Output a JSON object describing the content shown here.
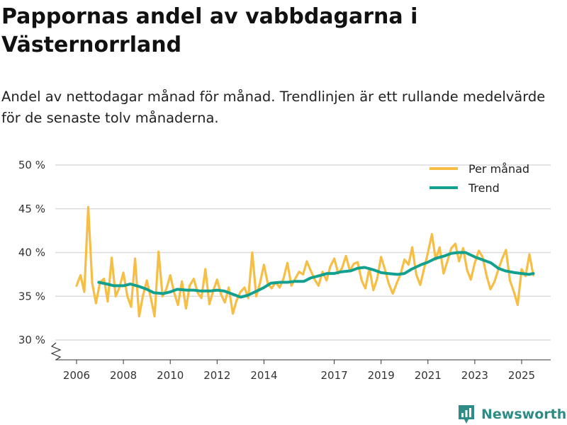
{
  "title": "Pappornas andel av vabbdagarna i Västernorrland",
  "subtitle": "Andel av nettodagar månad för månad. Trendlinjen är ett rullande medelvärde för de senaste tolv månaderna.",
  "brand": "Newsworthy",
  "colors": {
    "monthly": "#f6be44",
    "trend": "#12a08f",
    "grid": "#dcdcdc",
    "axis": "#333333",
    "brand": "#2e8c86"
  },
  "chart_data": {
    "type": "line",
    "title": "Pappornas andel av vabbdagarna i Västernorrland",
    "xlabel": "",
    "ylabel": "",
    "xlim": [
      2005.8,
      2025.6
    ],
    "ylim": [
      28,
      50
    ],
    "y_ticks": [
      30,
      35,
      40,
      45,
      50
    ],
    "y_tick_labels": [
      "30 %",
      "35 %",
      "40 %",
      "45 %",
      "50 %"
    ],
    "x_ticks": [
      2006,
      2008,
      2010,
      2012,
      2014,
      2017,
      2019,
      2021,
      2023,
      2025
    ],
    "x_tick_labels": [
      "2006",
      "2008",
      "2010",
      "2012",
      "2014",
      "2017",
      "2019",
      "2021",
      "2023",
      "2025"
    ],
    "legend": {
      "position": "top-right",
      "entries": [
        "Per månad",
        "Trend"
      ]
    },
    "series": [
      {
        "name": "Per månad",
        "color": "#f6be44",
        "points": [
          [
            2006.0,
            36.2
          ],
          [
            2006.17,
            37.4
          ],
          [
            2006.33,
            35.5
          ],
          [
            2006.5,
            45.2
          ],
          [
            2006.67,
            36.5
          ],
          [
            2006.83,
            34.2
          ],
          [
            2007.0,
            36.6
          ],
          [
            2007.17,
            37.0
          ],
          [
            2007.33,
            34.4
          ],
          [
            2007.5,
            39.4
          ],
          [
            2007.67,
            35.0
          ],
          [
            2007.83,
            36.0
          ],
          [
            2008.0,
            37.7
          ],
          [
            2008.17,
            35.0
          ],
          [
            2008.33,
            33.8
          ],
          [
            2008.5,
            39.3
          ],
          [
            2008.67,
            32.7
          ],
          [
            2008.83,
            35.0
          ],
          [
            2009.0,
            36.8
          ],
          [
            2009.17,
            34.8
          ],
          [
            2009.33,
            32.7
          ],
          [
            2009.5,
            40.1
          ],
          [
            2009.67,
            35.0
          ],
          [
            2009.83,
            35.8
          ],
          [
            2010.0,
            37.4
          ],
          [
            2010.17,
            35.4
          ],
          [
            2010.33,
            34.0
          ],
          [
            2010.5,
            36.7
          ],
          [
            2010.67,
            33.6
          ],
          [
            2010.83,
            36.2
          ],
          [
            2011.0,
            37.0
          ],
          [
            2011.17,
            35.4
          ],
          [
            2011.33,
            34.8
          ],
          [
            2011.5,
            38.1
          ],
          [
            2011.67,
            34.1
          ],
          [
            2011.83,
            35.6
          ],
          [
            2012.0,
            36.9
          ],
          [
            2012.17,
            35.2
          ],
          [
            2012.33,
            34.3
          ],
          [
            2012.5,
            36.0
          ],
          [
            2012.67,
            33.0
          ],
          [
            2012.83,
            34.5
          ],
          [
            2013.0,
            35.5
          ],
          [
            2013.17,
            36.0
          ],
          [
            2013.33,
            34.8
          ],
          [
            2013.5,
            40.0
          ],
          [
            2013.67,
            35.0
          ],
          [
            2013.83,
            36.5
          ],
          [
            2014.0,
            38.6
          ],
          [
            2014.17,
            36.4
          ],
          [
            2014.33,
            35.9
          ],
          [
            2014.5,
            36.6
          ],
          [
            2014.67,
            36.0
          ],
          [
            2014.83,
            37.0
          ],
          [
            2015.0,
            38.8
          ],
          [
            2015.17,
            36.2
          ],
          [
            2015.33,
            37.0
          ],
          [
            2015.5,
            37.8
          ],
          [
            2015.67,
            37.5
          ],
          [
            2015.83,
            39.0
          ],
          [
            2016.0,
            37.9
          ],
          [
            2016.17,
            36.9
          ],
          [
            2016.33,
            36.2
          ],
          [
            2016.5,
            37.8
          ],
          [
            2016.67,
            36.8
          ],
          [
            2016.83,
            38.4
          ],
          [
            2017.0,
            39.3
          ],
          [
            2017.17,
            37.6
          ],
          [
            2017.33,
            38.2
          ],
          [
            2017.5,
            39.6
          ],
          [
            2017.67,
            37.9
          ],
          [
            2017.83,
            38.7
          ],
          [
            2018.0,
            38.9
          ],
          [
            2018.17,
            36.8
          ],
          [
            2018.33,
            35.9
          ],
          [
            2018.5,
            38.2
          ],
          [
            2018.67,
            35.7
          ],
          [
            2018.83,
            37.0
          ],
          [
            2019.0,
            39.5
          ],
          [
            2019.17,
            38.0
          ],
          [
            2019.33,
            36.4
          ],
          [
            2019.5,
            35.3
          ],
          [
            2019.67,
            36.5
          ],
          [
            2019.83,
            37.5
          ],
          [
            2020.0,
            39.2
          ],
          [
            2020.17,
            38.6
          ],
          [
            2020.33,
            40.6
          ],
          [
            2020.5,
            37.5
          ],
          [
            2020.67,
            36.3
          ],
          [
            2020.83,
            38.1
          ],
          [
            2021.0,
            40.0
          ],
          [
            2021.17,
            42.1
          ],
          [
            2021.33,
            39.2
          ],
          [
            2021.5,
            40.6
          ],
          [
            2021.67,
            37.6
          ],
          [
            2021.83,
            39.0
          ],
          [
            2022.0,
            40.5
          ],
          [
            2022.17,
            41.0
          ],
          [
            2022.33,
            39.0
          ],
          [
            2022.5,
            40.5
          ],
          [
            2022.67,
            38.0
          ],
          [
            2022.83,
            36.9
          ],
          [
            2023.0,
            38.8
          ],
          [
            2023.17,
            40.2
          ],
          [
            2023.33,
            39.5
          ],
          [
            2023.5,
            37.4
          ],
          [
            2023.67,
            35.8
          ],
          [
            2023.83,
            36.6
          ],
          [
            2024.0,
            38.0
          ],
          [
            2024.17,
            39.3
          ],
          [
            2024.33,
            40.3
          ],
          [
            2024.5,
            36.8
          ],
          [
            2024.67,
            35.5
          ],
          [
            2024.83,
            34.0
          ],
          [
            2025.0,
            38.1
          ],
          [
            2025.17,
            37.3
          ],
          [
            2025.33,
            39.8
          ],
          [
            2025.5,
            37.4
          ]
        ]
      },
      {
        "name": "Trend",
        "color": "#12a08f",
        "points": [
          [
            2006.95,
            36.6
          ],
          [
            2007.3,
            36.4
          ],
          [
            2007.6,
            36.2
          ],
          [
            2008.0,
            36.2
          ],
          [
            2008.3,
            36.4
          ],
          [
            2008.7,
            36.1
          ],
          [
            2009.0,
            35.8
          ],
          [
            2009.3,
            35.4
          ],
          [
            2009.7,
            35.3
          ],
          [
            2010.0,
            35.5
          ],
          [
            2010.3,
            35.8
          ],
          [
            2010.7,
            35.7
          ],
          [
            2011.0,
            35.7
          ],
          [
            2011.3,
            35.6
          ],
          [
            2011.7,
            35.6
          ],
          [
            2012.0,
            35.7
          ],
          [
            2012.3,
            35.6
          ],
          [
            2012.7,
            35.2
          ],
          [
            2013.0,
            34.9
          ],
          [
            2013.3,
            35.1
          ],
          [
            2013.7,
            35.6
          ],
          [
            2014.0,
            36.0
          ],
          [
            2014.3,
            36.5
          ],
          [
            2014.7,
            36.6
          ],
          [
            2015.0,
            36.6
          ],
          [
            2015.3,
            36.7
          ],
          [
            2015.7,
            36.7
          ],
          [
            2016.0,
            37.1
          ],
          [
            2016.3,
            37.3
          ],
          [
            2016.7,
            37.6
          ],
          [
            2017.0,
            37.6
          ],
          [
            2017.3,
            37.8
          ],
          [
            2017.7,
            37.9
          ],
          [
            2018.0,
            38.2
          ],
          [
            2018.3,
            38.3
          ],
          [
            2018.7,
            38.0
          ],
          [
            2019.0,
            37.7
          ],
          [
            2019.3,
            37.6
          ],
          [
            2019.7,
            37.5
          ],
          [
            2020.0,
            37.6
          ],
          [
            2020.3,
            38.1
          ],
          [
            2020.7,
            38.6
          ],
          [
            2021.0,
            38.9
          ],
          [
            2021.3,
            39.3
          ],
          [
            2021.7,
            39.6
          ],
          [
            2022.0,
            39.9
          ],
          [
            2022.3,
            40.0
          ],
          [
            2022.6,
            40.0
          ],
          [
            2023.0,
            39.5
          ],
          [
            2023.3,
            39.2
          ],
          [
            2023.7,
            38.8
          ],
          [
            2024.0,
            38.2
          ],
          [
            2024.3,
            37.9
          ],
          [
            2024.7,
            37.7
          ],
          [
            2025.0,
            37.6
          ],
          [
            2025.3,
            37.5
          ],
          [
            2025.5,
            37.6
          ]
        ]
      }
    ]
  }
}
